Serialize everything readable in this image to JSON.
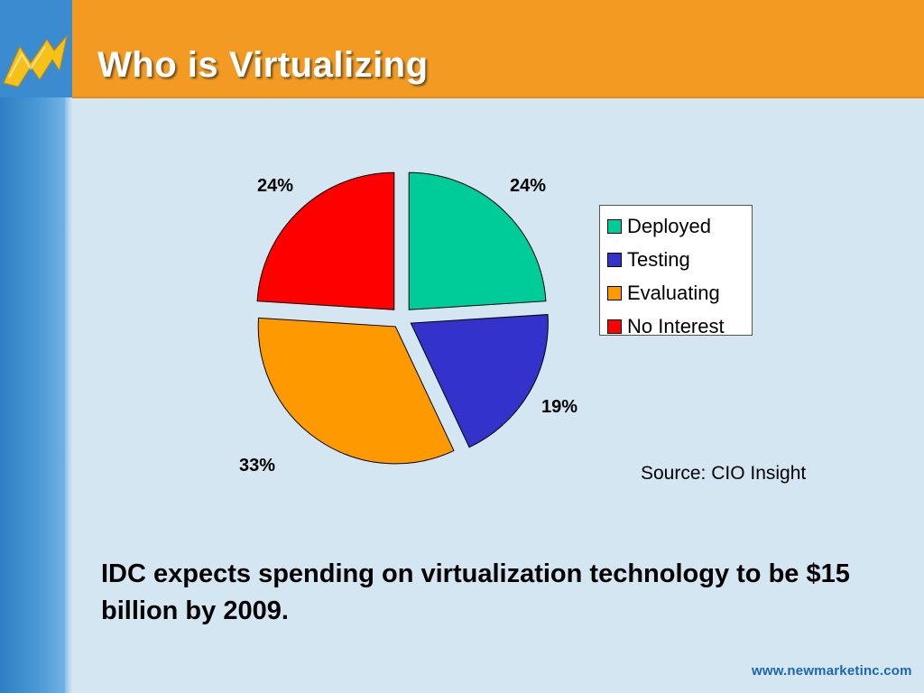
{
  "slide": {
    "title": "Who is Virtualizing",
    "source": "Source: CIO Insight",
    "caption": "IDC expects spending on virtualization technology to be $15 billion by 2009.",
    "footer_url": "www.newmarketinc.com"
  },
  "colors": {
    "header": "#f39a22",
    "background": "#d3e6f2",
    "sidebar": "#3a8bd0"
  },
  "chart_data": {
    "type": "pie",
    "title": "",
    "legend_position": "right",
    "slices": [
      {
        "label": "Deployed",
        "value": 24,
        "display": "24%",
        "color": "#00cc99"
      },
      {
        "label": "Testing",
        "value": 19,
        "display": "19%",
        "color": "#3333cc"
      },
      {
        "label": "Evaluating",
        "value": 33,
        "display": "33%",
        "color": "#ff9900"
      },
      {
        "label": "No Interest",
        "value": 24,
        "display": "24%",
        "color": "#ff0000"
      }
    ]
  }
}
